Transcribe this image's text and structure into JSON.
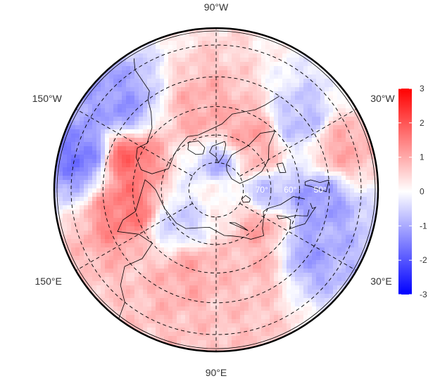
{
  "chart_data": {
    "type": "heatmap",
    "projection": "polar-stereographic",
    "title": "",
    "longitude_labels": [
      {
        "text": "90°W",
        "lon": -90
      },
      {
        "text": "150°W",
        "lon": -150
      },
      {
        "text": "150°E",
        "lon": 150
      },
      {
        "text": "90°E",
        "lon": 90
      },
      {
        "text": "30°E",
        "lon": 30
      },
      {
        "text": "30°W",
        "lon": -30
      }
    ],
    "latitude_labels": [
      {
        "text": "70°",
        "lat": 70
      },
      {
        "text": "60°",
        "lat": 60
      },
      {
        "text": "50°",
        "lat": 50
      }
    ],
    "graticule_latitudes": [
      80,
      70,
      60,
      50,
      40
    ],
    "graticule_longitudes": [
      -150,
      -90,
      -30,
      30,
      90,
      150
    ],
    "colorbar": {
      "min": -3,
      "max": 3,
      "ticks": [
        3,
        2,
        1,
        0,
        -1,
        -2,
        -3
      ],
      "colors": [
        "#0000ff",
        "#ffffff",
        "#ff0000"
      ]
    },
    "anomaly_regions": [
      {
        "lat": 68,
        "lon": -60,
        "value": 1.2
      },
      {
        "lat": 72,
        "lon": -40,
        "value": 0.9
      },
      {
        "lat": 80,
        "lon": -80,
        "value": -1.0
      },
      {
        "lat": 62,
        "lon": -100,
        "value": 1.0
      },
      {
        "lat": 55,
        "lon": -160,
        "value": 1.8
      },
      {
        "lat": 42,
        "lon": -165,
        "value": -1.6
      },
      {
        "lat": 45,
        "lon": -140,
        "value": -1.2
      },
      {
        "lat": 58,
        "lon": 170,
        "value": 1.6
      },
      {
        "lat": 72,
        "lon": 140,
        "value": -0.6
      },
      {
        "lat": 60,
        "lon": 110,
        "value": 1.0
      },
      {
        "lat": 60,
        "lon": 60,
        "value": 0.8
      },
      {
        "lat": 70,
        "lon": 40,
        "value": 1.1
      },
      {
        "lat": 52,
        "lon": 35,
        "value": -1.1
      },
      {
        "lat": 55,
        "lon": 5,
        "value": -1.2
      },
      {
        "lat": 72,
        "lon": 0,
        "value": -0.9
      },
      {
        "lat": 45,
        "lon": -20,
        "value": 1.0
      },
      {
        "lat": 52,
        "lon": -40,
        "value": -0.8
      },
      {
        "lat": 48,
        "lon": 80,
        "value": 0.7
      },
      {
        "lat": 88,
        "lon": 0,
        "value": 0.2
      }
    ]
  }
}
